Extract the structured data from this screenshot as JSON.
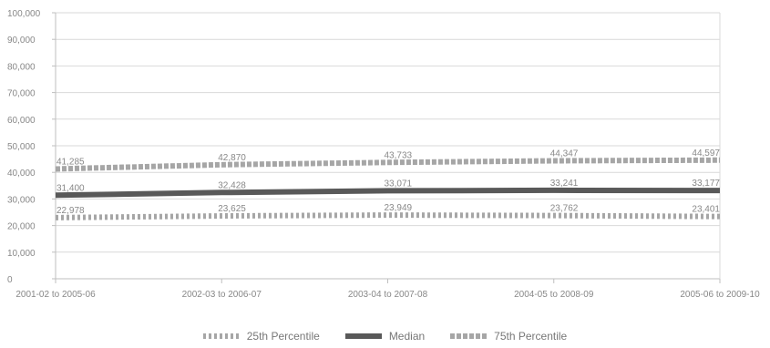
{
  "chart_data": {
    "type": "line",
    "categories": [
      "2001-02 to 2005-06",
      "2002-03 to 2006-07",
      "2003-04 to 2007-08",
      "2004-05 to 2008-09",
      "2005-06 to 2009-10"
    ],
    "ylim": [
      0,
      100000
    ],
    "yticks": [
      0,
      10000,
      20000,
      30000,
      40000,
      50000,
      60000,
      70000,
      80000,
      90000,
      100000
    ],
    "ytick_labels": [
      "0",
      "10,000",
      "20,000",
      "30,000",
      "40,000",
      "50,000",
      "60,000",
      "70,000",
      "80,000",
      "90,000",
      "100,000"
    ],
    "grid": true,
    "legend_position": "bottom",
    "series": [
      {
        "name": "25th Percentile",
        "values": [
          22978,
          23625,
          23949,
          23762,
          23401
        ],
        "labels": [
          "22,978",
          "23,625",
          "23,949",
          "23,762",
          "23,401"
        ],
        "color": "#a6a6a6",
        "style": "dash-dot"
      },
      {
        "name": "Median",
        "values": [
          31400,
          32428,
          33071,
          33241,
          33177
        ],
        "labels": [
          "31,400",
          "32,428",
          "33,071",
          "33,241",
          "33,177"
        ],
        "color": "#595959",
        "style": "solid"
      },
      {
        "name": "75th Percentile",
        "values": [
          41285,
          42870,
          43733,
          44347,
          44597
        ],
        "labels": [
          "41,285",
          "42,870",
          "43,733",
          "44,347",
          "44,597"
        ],
        "color": "#a6a6a6",
        "style": "dashed"
      }
    ]
  }
}
